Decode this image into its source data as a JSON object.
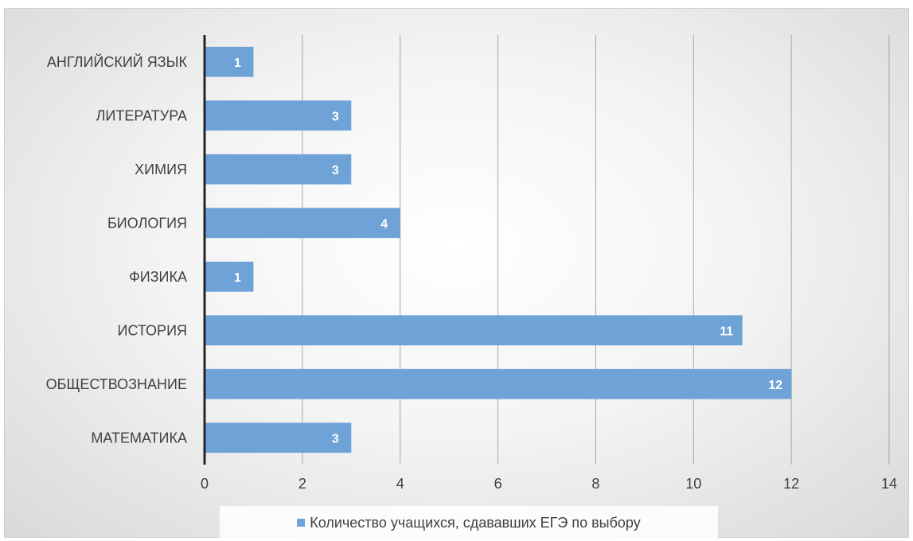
{
  "chart_data": {
    "type": "bar",
    "orientation": "horizontal",
    "categories": [
      "АНГЛИЙСКИЙ ЯЗЫК",
      "ЛИТЕРАТУРА",
      "ХИМИЯ",
      "БИОЛОГИЯ",
      "ФИЗИКА",
      "ИСТОРИЯ",
      "ОБЩЕСТВОЗНАНИЕ",
      "МАТЕМАТИКА"
    ],
    "series": [
      {
        "name": "Количество учащихся, сдававших ЕГЭ по выбору",
        "values": [
          1,
          3,
          3,
          4,
          1,
          11,
          12,
          3
        ],
        "color": "#6fa3d8"
      }
    ],
    "xlim": [
      0,
      14
    ],
    "xticks": [
      "0",
      "2",
      "4",
      "6",
      "8",
      "10",
      "12",
      "14"
    ],
    "grid": "vertical",
    "legend": "bottom",
    "data_labels": true
  }
}
